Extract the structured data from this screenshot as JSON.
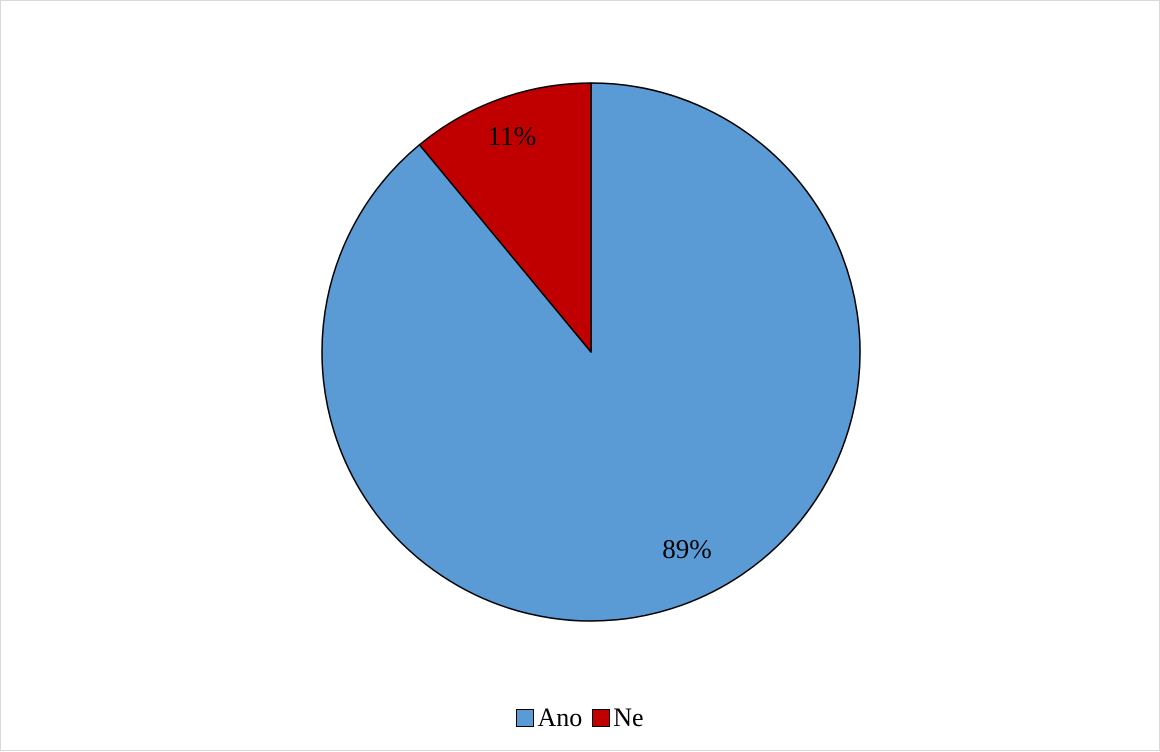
{
  "chart_data": {
    "type": "pie",
    "categories": [
      "Ano",
      "Ne"
    ],
    "values": [
      89,
      11
    ],
    "labels": [
      "89%",
      "11%"
    ],
    "colors": [
      "#5b9bd5",
      "#c00000"
    ],
    "start_angle_deg": 0,
    "direction": "clockwise",
    "legend_position": "bottom"
  }
}
